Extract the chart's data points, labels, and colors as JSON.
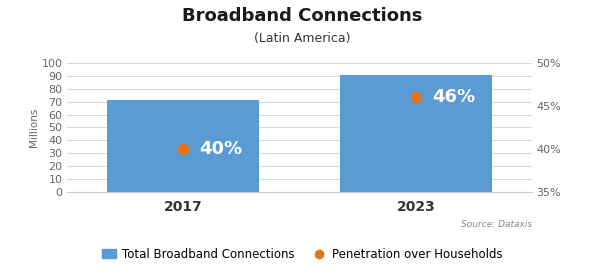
{
  "title": "Broadband Connections",
  "subtitle": "(Latin America)",
  "categories": [
    "2017",
    "2023"
  ],
  "bar_values": [
    71,
    91
  ],
  "bar_color": "#5B9BD5",
  "penetration_values": [
    40,
    46
  ],
  "penetration_labels": [
    "40%",
    "46%"
  ],
  "penetration_color": "#E3741A",
  "ylabel_left": "Millions",
  "ylim_left": [
    0,
    100
  ],
  "yticks_left": [
    0,
    10,
    20,
    30,
    40,
    50,
    60,
    70,
    80,
    90,
    100
  ],
  "ylim_right": [
    35,
    50
  ],
  "yticks_right": [
    35,
    40,
    45,
    50
  ],
  "ytick_right_labels": [
    "35%",
    "40%",
    "45%",
    "50%"
  ],
  "source_text": "Source: Dataxis",
  "legend_bar_label": "Total Broadband Connections",
  "legend_dot_label": "Penetration over Households",
  "background_color": "#FFFFFF",
  "grid_color": "#D8D8D8",
  "bar_width": 0.65,
  "annotation_color": "#FFFFFF",
  "annotation_fontsize": 13,
  "title_fontsize": 13,
  "subtitle_fontsize": 9,
  "axis_label_fontsize": 7.5,
  "tick_fontsize": 8,
  "legend_fontsize": 8.5,
  "source_fontsize": 6.5,
  "xlim": [
    -0.5,
    1.5
  ]
}
